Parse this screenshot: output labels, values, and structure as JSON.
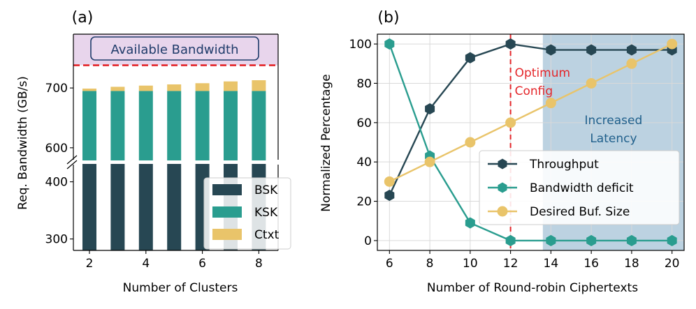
{
  "chart_data": [
    {
      "panel_label": "(a)",
      "type": "bar",
      "stacked": true,
      "broken_axis": true,
      "categories": [
        "2",
        "3",
        "4",
        "5",
        "6",
        "7",
        "8"
      ],
      "xlabel": "Number of Clusters",
      "ylabel": "Req. Bandwidth (GB/s)",
      "xticks": [
        "2",
        "4",
        "6",
        "8"
      ],
      "yticks_lower": [
        300,
        400
      ],
      "yticks_upper": [
        600,
        700
      ],
      "ylim_lower": [
        280,
        430
      ],
      "ylim_upper": [
        580,
        790
      ],
      "series": [
        {
          "name": "BSK",
          "color": "#274753",
          "values": [
            430,
            430,
            430,
            430,
            430,
            430,
            430
          ]
        },
        {
          "name": "KSK",
          "color": "#2a9d8f",
          "values": [
            695,
            695,
            695,
            695,
            695,
            695,
            695
          ]
        },
        {
          "name": "Ctxt",
          "color": "#e9c46a",
          "values": [
            699,
            702,
            704,
            706,
            708,
            711,
            713
          ]
        }
      ],
      "legend": [
        "BSK",
        "KSK",
        "Ctxt"
      ],
      "legend_position": "lower-right",
      "threshold": {
        "value": 738,
        "color": "#e4262a",
        "label": "Available Bandwidth",
        "band_color": "#e8d5ec"
      }
    },
    {
      "panel_label": "(b)",
      "type": "line",
      "x": [
        6,
        8,
        10,
        12,
        14,
        16,
        18,
        20
      ],
      "xlabel": "Number of Round-robin Ciphertexts",
      "ylabel": "Normalized Percentage",
      "xticks": [
        "6",
        "8",
        "10",
        "12",
        "14",
        "16",
        "18",
        "20"
      ],
      "yticks": [
        "0",
        "20",
        "40",
        "60",
        "80",
        "100"
      ],
      "xlim": [
        5.4,
        20.6
      ],
      "ylim": [
        -5,
        105
      ],
      "grid": true,
      "series": [
        {
          "name": "Throughput",
          "color": "#274753",
          "marker": "hexagon",
          "values": [
            23,
            67,
            93,
            100,
            97,
            97,
            97,
            97
          ]
        },
        {
          "name": "Bandwidth deficit",
          "color": "#2a9d8f",
          "marker": "hexagon",
          "values": [
            100,
            43,
            9,
            0,
            0,
            0,
            0,
            0
          ]
        },
        {
          "name": "Desired Buf. Size",
          "color": "#e9c46a",
          "marker": "circle",
          "values": [
            30,
            40,
            50,
            60,
            70,
            80,
            90,
            100
          ]
        }
      ],
      "legend_position": "lower-right",
      "optimum_line": {
        "x": 12,
        "color": "#e4262a",
        "label_line1": "Optimum",
        "label_line2": "Config"
      },
      "shaded_region": {
        "x_from": 13.6,
        "x_to": 20.6,
        "color": "#bcd2e1",
        "label_line1": "Increased",
        "label_line2": "Latency",
        "label_color": "#1f5f8b"
      }
    }
  ]
}
